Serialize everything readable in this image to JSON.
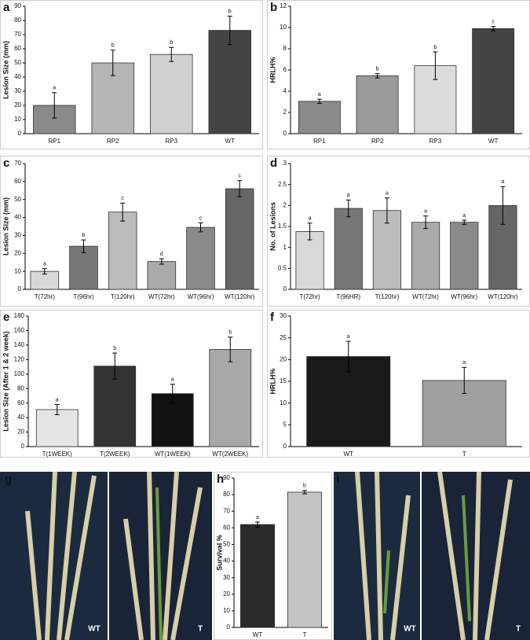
{
  "chart_data": [
    {
      "type": "bar",
      "panel": "a",
      "ylabel": "Lesion Size (mm)",
      "categories": [
        "RP1",
        "RP2",
        "RP3",
        "WT"
      ],
      "values": [
        20,
        50,
        56,
        73
      ],
      "errors": [
        9,
        9,
        5,
        10
      ],
      "annotations": [
        "a",
        "b",
        "b",
        "b"
      ],
      "colors": [
        "#8a8a8a",
        "#b5b5b5",
        "#d0d0d0",
        "#444444"
      ],
      "ylim": [
        0,
        90
      ],
      "yticks": [
        0,
        10,
        20,
        30,
        40,
        50,
        60,
        70,
        80,
        90
      ]
    },
    {
      "type": "bar",
      "panel": "b",
      "ylabel": "HRLH%",
      "categories": [
        "RP1",
        "RP2",
        "RP3",
        "WT"
      ],
      "values": [
        3.05,
        5.45,
        6.4,
        9.9
      ],
      "errors": [
        0.2,
        0.2,
        1.3,
        0.2
      ],
      "annotations": [
        "a",
        "b",
        "b",
        "c"
      ],
      "colors": [
        "#8a8a8a",
        "#9a9a9a",
        "#dcdcdc",
        "#444444"
      ],
      "ylim": [
        0,
        12
      ],
      "yticks": [
        0,
        2,
        4,
        6,
        8,
        10,
        12
      ]
    },
    {
      "type": "bar",
      "panel": "c",
      "ylabel": "Lesion Size (mm)",
      "categories": [
        "T(72hr)",
        "T(96hr)",
        "T(120hr)",
        "WT(72hr)",
        "WT(96hr)",
        "WT(120hr)"
      ],
      "values": [
        10,
        24,
        43,
        15.5,
        34.5,
        56
      ],
      "errors": [
        1.5,
        3.5,
        5,
        1.5,
        2.5,
        4.5
      ],
      "annotations": [
        "a",
        "b",
        "c",
        "d",
        "c",
        "c"
      ],
      "colors": [
        "#d8d8d8",
        "#777777",
        "#bcbcbc",
        "#aaaaaa",
        "#8a8a8a",
        "#666666"
      ],
      "ylim": [
        0,
        70
      ],
      "yticks": [
        0,
        10,
        20,
        30,
        40,
        50,
        60,
        70
      ]
    },
    {
      "type": "bar",
      "panel": "d",
      "ylabel": "No. of Lesions",
      "categories": [
        "T(72hr)",
        "T(96HR)",
        "T(120hr)",
        "WT(72hr)",
        "WT(96hr)",
        "WT(120hr)"
      ],
      "values": [
        1.38,
        1.93,
        1.88,
        1.6,
        1.6,
        2.0
      ],
      "errors": [
        0.2,
        0.2,
        0.3,
        0.15,
        0.05,
        0.45
      ],
      "annotations": [
        "a",
        "a",
        "a",
        "a",
        "a",
        "a"
      ],
      "colors": [
        "#d8d8d8",
        "#777777",
        "#bcbcbc",
        "#aaaaaa",
        "#8a8a8a",
        "#666666"
      ],
      "ylim": [
        0,
        3
      ],
      "yticks": [
        0,
        0.5,
        1,
        1.5,
        2,
        2.5,
        3
      ]
    },
    {
      "type": "bar",
      "panel": "e",
      "ylabel": "Lesion Size (After 1 & 2 week)",
      "categories": [
        "T(1WEEK)",
        "T(2WEEK)",
        "WT(1WEEK)",
        "WT(2WEEK)"
      ],
      "values": [
        51,
        111,
        73,
        134
      ],
      "errors": [
        7,
        18,
        13,
        17
      ],
      "annotations": [
        "a",
        "b",
        "a",
        "b"
      ],
      "colors": [
        "#e4e4e4",
        "#333333",
        "#111111",
        "#a8a8a8"
      ],
      "ylim": [
        0,
        180
      ],
      "yticks": [
        0,
        20,
        40,
        60,
        80,
        100,
        120,
        140,
        160,
        180
      ]
    },
    {
      "type": "bar",
      "panel": "f",
      "ylabel": "HRLH%",
      "categories": [
        "WT",
        "T"
      ],
      "values": [
        20.7,
        15.2
      ],
      "errors": [
        3.5,
        3
      ],
      "annotations": [
        "a",
        "a"
      ],
      "colors": [
        "#1a1a1a",
        "#a0a0a0"
      ],
      "ylim": [
        0,
        30
      ],
      "yticks": [
        0,
        5,
        10,
        15,
        20,
        25,
        30
      ]
    },
    {
      "type": "bar",
      "panel": "h",
      "ylabel": "Survival %",
      "categories": [
        "WT",
        "T"
      ],
      "values": [
        62,
        81.5
      ],
      "errors": [
        1.5,
        1
      ],
      "annotations": [
        "a",
        "b"
      ],
      "colors": [
        "#2a2a2a",
        "#c4c4c4"
      ],
      "ylim": [
        0,
        90
      ],
      "yticks": [
        0,
        10,
        20,
        30,
        40,
        50,
        60,
        70,
        80,
        90
      ]
    }
  ],
  "photos": [
    {
      "panel": "g",
      "labels": [
        "WT",
        "T"
      ]
    },
    {
      "panel": "i",
      "labels": [
        "WT",
        "T"
      ]
    }
  ]
}
